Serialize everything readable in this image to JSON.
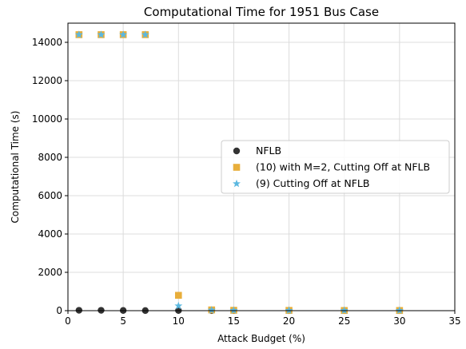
{
  "chart_data": {
    "type": "scatter",
    "title": "Computational Time for 1951 Bus Case",
    "xlabel": "Attack Budget (%)",
    "ylabel": "Computational Time (s)",
    "xlim": [
      0,
      35
    ],
    "ylim": [
      0,
      15000
    ],
    "xticks": [
      0,
      5,
      10,
      15,
      20,
      25,
      30,
      35
    ],
    "yticks": [
      0,
      2000,
      4000,
      6000,
      8000,
      10000,
      12000,
      14000
    ],
    "grid": true,
    "legend_position": "center-right",
    "series": [
      {
        "name": "NFLB",
        "marker": "circle",
        "color": "#333333",
        "points": [
          [
            1,
            20
          ],
          [
            3,
            20
          ],
          [
            5,
            10
          ],
          [
            7,
            5
          ],
          [
            10,
            10
          ],
          [
            13,
            5
          ],
          [
            15,
            5
          ],
          [
            20,
            5
          ],
          [
            25,
            5
          ],
          [
            30,
            5
          ]
        ]
      },
      {
        "name": "(10) with M=2, Cutting Off at NFLB",
        "marker": "square",
        "color": "#E8AE3B",
        "points": [
          [
            1,
            14400
          ],
          [
            3,
            14400
          ],
          [
            5,
            14400
          ],
          [
            7,
            14400
          ],
          [
            10,
            800
          ],
          [
            13,
            40
          ],
          [
            15,
            20
          ],
          [
            20,
            15
          ],
          [
            25,
            10
          ],
          [
            30,
            10
          ]
        ]
      },
      {
        "name": "(9) Cutting Off at NFLB",
        "marker": "star",
        "color": "#5BB8E0",
        "points": [
          [
            1,
            14400
          ],
          [
            3,
            14400
          ],
          [
            5,
            14400
          ],
          [
            7,
            14400
          ],
          [
            10,
            250
          ],
          [
            13,
            30
          ],
          [
            15,
            15
          ],
          [
            20,
            10
          ],
          [
            25,
            8
          ],
          [
            30,
            8
          ]
        ]
      }
    ]
  }
}
